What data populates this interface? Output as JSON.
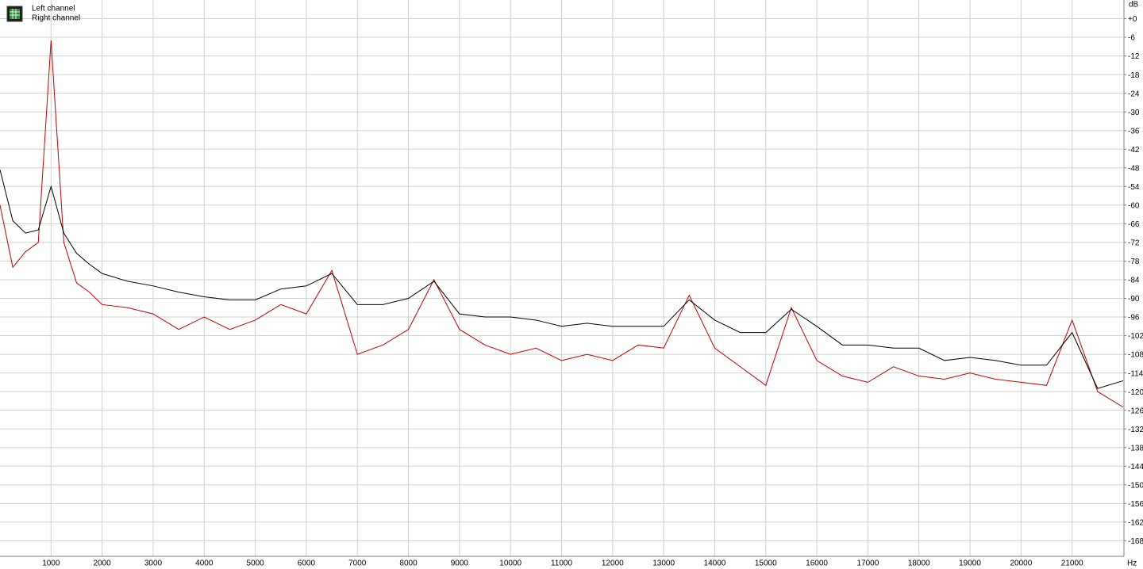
{
  "chart_data": {
    "type": "line",
    "x_unit": "Hz",
    "y_unit": "dB",
    "x": [
      0,
      250,
      500,
      750,
      1000,
      1250,
      1500,
      1750,
      2000,
      2500,
      3000,
      3500,
      4000,
      4500,
      5000,
      5500,
      6000,
      6500,
      7000,
      7500,
      8000,
      8500,
      9000,
      9500,
      10000,
      10500,
      11000,
      11500,
      12000,
      12500,
      13000,
      13500,
      14000,
      14500,
      15000,
      15500,
      16000,
      16500,
      17000,
      17500,
      18000,
      18500,
      19000,
      19500,
      20000,
      20500,
      21000,
      21500,
      22000
    ],
    "series": [
      {
        "name": "Left channel",
        "color": "#000000",
        "values": [
          -48.6,
          -65,
          -69,
          -68,
          -54,
          -69,
          -75.5,
          -79,
          -82,
          -84.5,
          -86,
          -88,
          -89.5,
          -90.5,
          -90.5,
          -87,
          -86,
          -82,
          -92,
          -92,
          -90,
          -84.5,
          -95,
          -96,
          -96,
          -97,
          -99,
          -98,
          -99,
          -99,
          -99,
          -90.5,
          -97,
          -101,
          -101,
          -93.5,
          -99,
          -105,
          -105,
          -106,
          -106,
          -110,
          -109,
          -110,
          -111.5,
          -111.5,
          -101,
          -119,
          -116.5
        ]
      },
      {
        "name": "Right channel",
        "color": "#c00000",
        "values": [
          -60,
          -80,
          -75,
          -72,
          -7,
          -72,
          -85,
          -88,
          -92,
          -93,
          -95,
          -100,
          -96,
          -100,
          -97,
          -92,
          -95,
          -81,
          -108,
          -105,
          -100,
          -84,
          -100,
          -105,
          -108,
          -106,
          -110,
          -108,
          -110,
          -105,
          -106,
          -89,
          -106,
          -112,
          -118,
          -93,
          -110,
          -115,
          -117,
          -112,
          -115,
          -116,
          -114,
          -116,
          -117,
          -118,
          -97,
          -120,
          -125
        ]
      }
    ],
    "xlim": [
      0,
      22000
    ],
    "xticks": [
      1000,
      2000,
      3000,
      4000,
      5000,
      6000,
      7000,
      8000,
      9000,
      10000,
      11000,
      12000,
      13000,
      14000,
      15000,
      16000,
      17000,
      18000,
      19000,
      20000,
      21000
    ],
    "ylim": [
      -173,
      6
    ],
    "yticks": [
      {
        "value": 0,
        "label": "+0"
      },
      -6,
      -12,
      -18,
      -24,
      -30,
      -36,
      -42,
      -48,
      -54,
      -60,
      -66,
      -72,
      -78,
      -84,
      -90,
      -96,
      -102,
      -108,
      -114,
      -120,
      -126,
      -132,
      -138,
      -144,
      -150,
      -156,
      -162,
      -168
    ],
    "grid": true
  }
}
